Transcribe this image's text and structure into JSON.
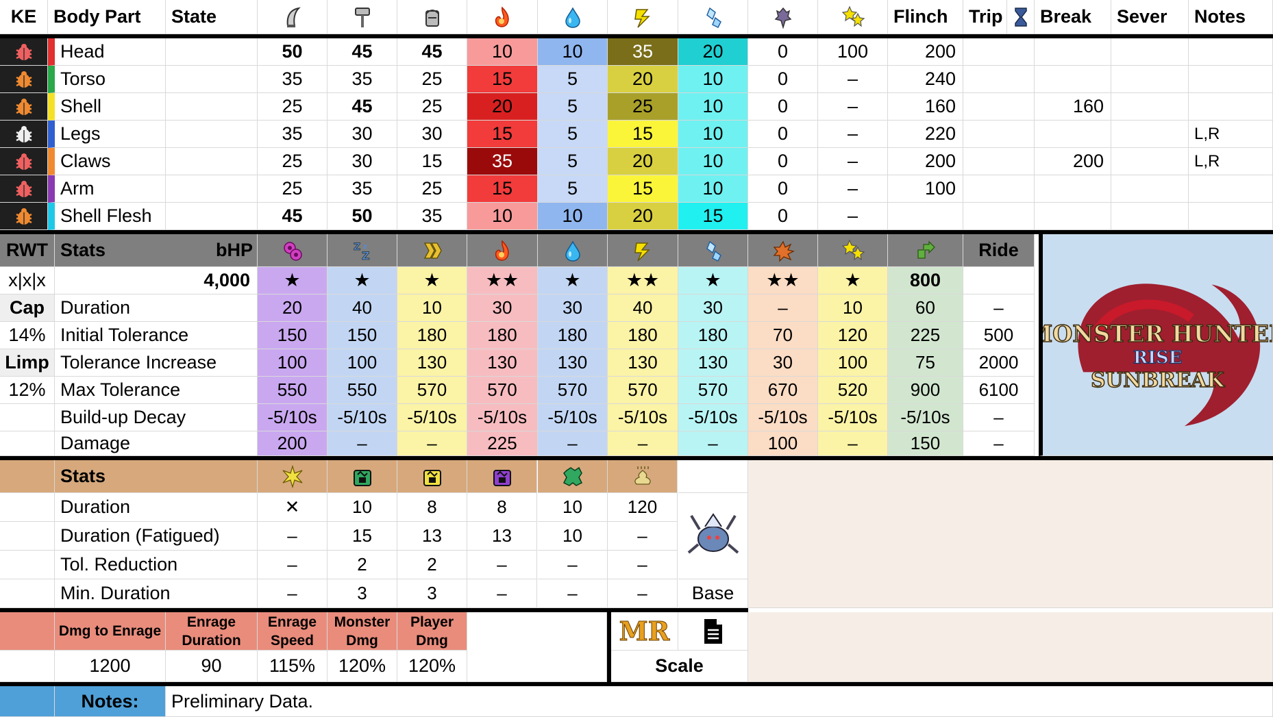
{
  "hitzones": {
    "headers": {
      "ke": "KE",
      "body_part": "Body Part",
      "state": "State",
      "flinch": "Flinch",
      "trip": "Trip",
      "break": "Break",
      "sever": "Sever",
      "notes": "Notes"
    },
    "icons": [
      "sever-icon",
      "blunt-icon",
      "ammo-icon",
      "fire-icon",
      "water-icon",
      "thunder-icon",
      "ice-icon",
      "dragon-icon",
      "stun-icon",
      "hourglass-icon"
    ],
    "rows": [
      {
        "part": "Head",
        "state": "",
        "sever": "50",
        "blunt": "45",
        "ammo": "45",
        "fire": "10",
        "water": "10",
        "thunder": "35",
        "ice": "20",
        "dragon": "0",
        "stun": "100",
        "flinch": "200",
        "trip": "",
        "break": "",
        "sever_val": "",
        "notes": "",
        "part_color": "#e03030",
        "bug_color": "#f06060",
        "fire_bg": "#f89a9a",
        "water_bg": "#8fb6ef",
        "thunder_bg": "#7a6e1a",
        "ice_bg": "#20cfd2",
        "thunder_fg": "#ffffff"
      },
      {
        "part": "Torso",
        "state": "",
        "sever": "35",
        "blunt": "35",
        "ammo": "25",
        "fire": "15",
        "water": "5",
        "thunder": "20",
        "ice": "10",
        "dragon": "0",
        "stun": "–",
        "flinch": "240",
        "trip": "",
        "break": "",
        "sever_val": "",
        "notes": "",
        "part_color": "#2aa84a",
        "bug_color": "#f08a30",
        "fire_bg": "#f23b3b",
        "water_bg": "#c7d9f6",
        "thunder_bg": "#d8d040",
        "ice_bg": "#6ff1f1",
        "thunder_fg": "#000000"
      },
      {
        "part": "Shell",
        "state": "",
        "sever": "25",
        "blunt": "45",
        "ammo": "25",
        "fire": "20",
        "water": "5",
        "thunder": "25",
        "ice": "10",
        "dragon": "0",
        "stun": "–",
        "flinch": "160",
        "trip": "",
        "break": "160",
        "sever_val": "",
        "notes": "",
        "part_color": "#f5e028",
        "bug_color": "#f08a30",
        "fire_bg": "#d92020",
        "water_bg": "#c7d9f6",
        "thunder_bg": "#a9a02a",
        "ice_bg": "#6ff1f1",
        "thunder_fg": "#000000"
      },
      {
        "part": "Legs",
        "state": "",
        "sever": "35",
        "blunt": "30",
        "ammo": "30",
        "fire": "15",
        "water": "5",
        "thunder": "15",
        "ice": "10",
        "dragon": "0",
        "stun": "–",
        "flinch": "220",
        "trip": "",
        "break": "",
        "sever_val": "",
        "notes": "L,R",
        "part_color": "#3060d0",
        "bug_color": "#f0f0f0",
        "fire_bg": "#f23b3b",
        "water_bg": "#c7d9f6",
        "thunder_bg": "#fbf53a",
        "ice_bg": "#6ff1f1",
        "thunder_fg": "#000000"
      },
      {
        "part": "Claws",
        "state": "",
        "sever": "25",
        "blunt": "30",
        "ammo": "15",
        "fire": "35",
        "water": "5",
        "thunder": "20",
        "ice": "10",
        "dragon": "0",
        "stun": "–",
        "flinch": "200",
        "trip": "",
        "break": "200",
        "sever_val": "",
        "notes": "L,R",
        "part_color": "#f08a30",
        "bug_color": "#f06060",
        "fire_bg": "#9a0a0a",
        "water_bg": "#c7d9f6",
        "thunder_bg": "#d8d040",
        "ice_bg": "#6ff1f1",
        "thunder_fg": "#000000",
        "fire_fg": "#ffffff"
      },
      {
        "part": "Arm",
        "state": "",
        "sever": "25",
        "blunt": "35",
        "ammo": "25",
        "fire": "15",
        "water": "5",
        "thunder": "15",
        "ice": "10",
        "dragon": "0",
        "stun": "–",
        "flinch": "100",
        "trip": "",
        "break": "",
        "sever_val": "",
        "notes": "",
        "part_color": "#8a3ab0",
        "bug_color": "#f06060",
        "fire_bg": "#f23b3b",
        "water_bg": "#c7d9f6",
        "thunder_bg": "#fbf53a",
        "ice_bg": "#6ff1f1",
        "thunder_fg": "#000000"
      },
      {
        "part": "Shell Flesh",
        "state": "",
        "sever": "45",
        "blunt": "50",
        "ammo": "35",
        "fire": "10",
        "water": "10",
        "thunder": "20",
        "ice": "15",
        "dragon": "0",
        "stun": "–",
        "flinch": "",
        "trip": "",
        "break": "",
        "sever_val": "",
        "notes": "",
        "part_color": "#20c8e8",
        "bug_color": "#f08a30",
        "fire_bg": "#f89a9a",
        "water_bg": "#8fb6ef",
        "thunder_bg": "#d8d040",
        "ice_bg": "#20f0f0",
        "thunder_fg": "#000000"
      }
    ],
    "bold_cells": [
      [
        0,
        "sever"
      ],
      [
        0,
        "blunt"
      ],
      [
        0,
        "ammo"
      ],
      [
        2,
        "blunt"
      ],
      [
        6,
        "sever"
      ],
      [
        6,
        "blunt"
      ]
    ]
  },
  "status": {
    "headers": {
      "rwt": "RWT",
      "stats": "Stats",
      "bhp": "bHP",
      "ride": "Ride"
    },
    "side": [
      "x|x|x",
      "Cap",
      "14%",
      "Limp",
      "12%",
      "",
      ""
    ],
    "bhp_value": "4,000",
    "labels": [
      "Duration",
      "Initial Tolerance",
      "Tolerance Increase",
      "Max Tolerance",
      "Build-up Decay",
      "Damage"
    ],
    "icons": [
      "poison-icon",
      "sleep-icon",
      "paralysis-icon",
      "fire-icon",
      "water-icon",
      "thunder-icon",
      "ice-icon",
      "blast-icon",
      "stun-icon",
      "exhaust-icon"
    ],
    "columns": [
      {
        "bg": "#c9a8f0",
        "stars": "★",
        "values": [
          "20",
          "150",
          "100",
          "550",
          "-5/10s",
          "200"
        ]
      },
      {
        "bg": "#c2d6f4",
        "stars": "★",
        "values": [
          "40",
          "150",
          "100",
          "550",
          "-5/10s",
          "–"
        ]
      },
      {
        "bg": "#fbf3a6",
        "stars": "★",
        "values": [
          "10",
          "180",
          "130",
          "570",
          "-5/10s",
          "–"
        ]
      },
      {
        "bg": "#f7bcc0",
        "stars": "★★",
        "values": [
          "30",
          "180",
          "130",
          "570",
          "-5/10s",
          "225"
        ]
      },
      {
        "bg": "#c2d6f4",
        "stars": "★",
        "values": [
          "30",
          "180",
          "130",
          "570",
          "-5/10s",
          "–"
        ]
      },
      {
        "bg": "#fbf3a6",
        "stars": "★★",
        "values": [
          "40",
          "180",
          "130",
          "570",
          "-5/10s",
          "–"
        ]
      },
      {
        "bg": "#b9f4f4",
        "stars": "★",
        "values": [
          "30",
          "180",
          "130",
          "570",
          "-5/10s",
          "–"
        ]
      },
      {
        "bg": "#fbdcc4",
        "stars": "★★",
        "values": [
          "–",
          "70",
          "30",
          "670",
          "-5/10s",
          "100"
        ]
      },
      {
        "bg": "#fbf3a6",
        "stars": "★",
        "values": [
          "10",
          "120",
          "100",
          "520",
          "-5/10s",
          "–"
        ]
      },
      {
        "bg": "#d2e6cf",
        "stars": "800",
        "values": [
          "60",
          "225",
          "75",
          "900",
          "-5/10s",
          "150"
        ]
      },
      {
        "bg": "#ffffff",
        "stars": "",
        "values": [
          "–",
          "500",
          "2000",
          "6100",
          "–",
          "–"
        ]
      }
    ]
  },
  "logo": {
    "line1": "MONSTER HUNTER",
    "line2": "RISE",
    "line3": "SUNBREAK"
  },
  "items": {
    "stats_label": "Stats",
    "labels": [
      "Duration",
      "Duration (Fatigued)",
      "Tol. Reduction",
      "Min. Duration"
    ],
    "icons": [
      "flash-bomb-icon",
      "shock-trap-icon",
      "pitfall-trap-icon",
      "tranq-icon",
      "screamer-pod-icon",
      "dung-pod-icon"
    ],
    "icon_colors": [
      "#f0e040",
      "#30a860",
      "#f0e040",
      "#9040d0",
      "#30a860",
      "#e8d890"
    ],
    "columns": [
      [
        "✕",
        "–",
        "–",
        "–"
      ],
      [
        "10",
        "15",
        "2",
        "3"
      ],
      [
        "8",
        "13",
        "2",
        "3"
      ],
      [
        "8",
        "13",
        "–",
        "–"
      ],
      [
        "10",
        "10",
        "–",
        "–"
      ],
      [
        "120",
        "–",
        "–",
        "–"
      ]
    ],
    "base_label": "Base"
  },
  "enrage": {
    "headers": [
      "Dmg to Enrage",
      "Enrage Duration",
      "Enrage Speed",
      "Monster Dmg",
      "Player Dmg"
    ],
    "values": [
      "1200",
      "90",
      "115%",
      "120%",
      "120%"
    ],
    "mr_label": "MR",
    "scale_label": "Scale"
  },
  "notes": {
    "label": "Notes:",
    "text": "Preliminary Data."
  },
  "colors": {
    "gray_header": "#7f7f7f",
    "tan_header": "#d6a87c",
    "salmon": "#e98c7c",
    "blue_note": "#4fa0d8",
    "logo_bg": "#c9ddf0",
    "empty_panel": "#f6eee6"
  }
}
